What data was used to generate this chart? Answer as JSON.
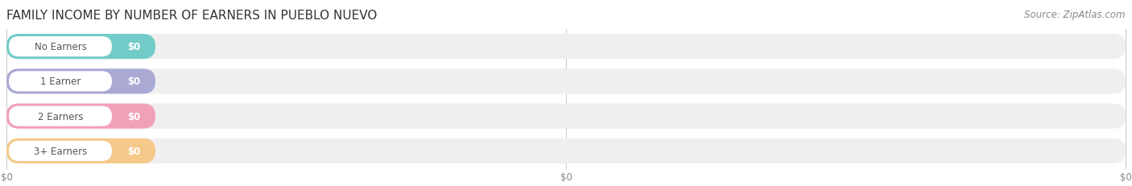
{
  "title": "FAMILY INCOME BY NUMBER OF EARNERS IN PUEBLO NUEVO",
  "source": "Source: ZipAtlas.com",
  "categories": [
    "No Earners",
    "1 Earner",
    "2 Earners",
    "3+ Earners"
  ],
  "values": [
    0,
    0,
    0,
    0
  ],
  "bar_colors": [
    "#72cbc7",
    "#a9a9d4",
    "#f2a0b8",
    "#f5c98a"
  ],
  "background_color": "#ffffff",
  "bar_bg_color": "#efefef",
  "title_fontsize": 11,
  "source_fontsize": 8.5
}
